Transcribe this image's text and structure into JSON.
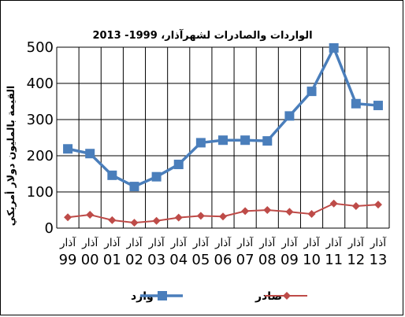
{
  "chart_data": {
    "type": "line",
    "title": "الواردات والصادرات لشهرآذار،  1999- 2013",
    "ylabel": "القيمة بالمليون دولار أمريكي",
    "xlabel": "",
    "ylim": [
      0,
      500
    ],
    "yticks": [
      "0",
      "100",
      "200",
      "300",
      "400",
      "500"
    ],
    "grid": true,
    "legend_position": "bottom",
    "categories": [
      {
        "month": "آذار",
        "year": "99"
      },
      {
        "month": "آذار",
        "year": "00"
      },
      {
        "month": "آذار",
        "year": "01"
      },
      {
        "month": "آذار",
        "year": "02"
      },
      {
        "month": "آذار",
        "year": "03"
      },
      {
        "month": "آذار",
        "year": "04"
      },
      {
        "month": "آذار",
        "year": "05"
      },
      {
        "month": "آذار",
        "year": "06"
      },
      {
        "month": "آذار",
        "year": "07"
      },
      {
        "month": "آذار",
        "year": "08"
      },
      {
        "month": "آذار",
        "year": "09"
      },
      {
        "month": "آذار",
        "year": "10"
      },
      {
        "month": "آذار",
        "year": "11"
      },
      {
        "month": "آذار",
        "year": "12"
      },
      {
        "month": "آذار",
        "year": "13"
      }
    ],
    "series": [
      {
        "name": "وارد",
        "color": "#4a7ebb",
        "marker": "square",
        "values": [
          219,
          206,
          146,
          115,
          142,
          176,
          236,
          243,
          243,
          241,
          310,
          378,
          498,
          344,
          339
        ]
      },
      {
        "name": "صادر",
        "color": "#be4b48",
        "marker": "diamond",
        "values": [
          30,
          37,
          22,
          15,
          20,
          29,
          34,
          32,
          47,
          50,
          45,
          39,
          68,
          61,
          65
        ]
      }
    ]
  }
}
